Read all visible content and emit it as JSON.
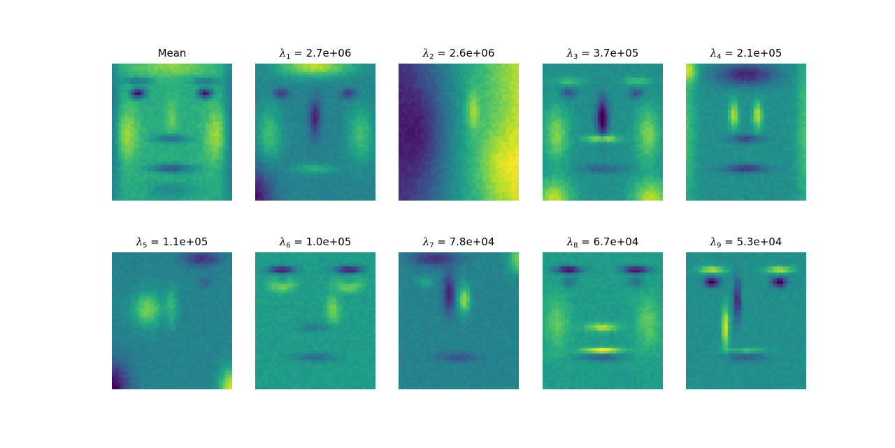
{
  "figure": {
    "panels": [
      {
        "id": "mean",
        "title": "Mean",
        "symbol": "",
        "subscript": "",
        "value": "",
        "colormap": "viridis",
        "pattern": "mean"
      },
      {
        "id": "eig1",
        "title": "",
        "symbol": "λ",
        "subscript": "1",
        "value": " = 2.7e+06",
        "colormap": "viridis",
        "pattern": "eig1"
      },
      {
        "id": "eig2",
        "title": "",
        "symbol": "λ",
        "subscript": "2",
        "value": " = 2.6e+06",
        "colormap": "viridis",
        "pattern": "eig2"
      },
      {
        "id": "eig3",
        "title": "",
        "symbol": "λ",
        "subscript": "3",
        "value": " = 3.7e+05",
        "colormap": "viridis",
        "pattern": "eig3"
      },
      {
        "id": "eig4",
        "title": "",
        "symbol": "λ",
        "subscript": "4",
        "value": " = 2.1e+05",
        "colormap": "viridis",
        "pattern": "eig4"
      },
      {
        "id": "eig5",
        "title": "",
        "symbol": "λ",
        "subscript": "5",
        "value": " = 1.1e+05",
        "colormap": "viridis",
        "pattern": "eig5"
      },
      {
        "id": "eig6",
        "title": "",
        "symbol": "λ",
        "subscript": "6",
        "value": " = 1.0e+05",
        "colormap": "viridis",
        "pattern": "eig6"
      },
      {
        "id": "eig7",
        "title": "",
        "symbol": "λ",
        "subscript": "7",
        "value": " = 7.8e+04",
        "colormap": "viridis",
        "pattern": "eig7"
      },
      {
        "id": "eig8",
        "title": "",
        "symbol": "λ",
        "subscript": "8",
        "value": " = 6.7e+04",
        "colormap": "viridis",
        "pattern": "eig8"
      },
      {
        "id": "eig9",
        "title": "",
        "symbol": "λ",
        "subscript": "9",
        "value": " = 5.3e+04",
        "colormap": "viridis",
        "pattern": "eig9"
      }
    ]
  }
}
